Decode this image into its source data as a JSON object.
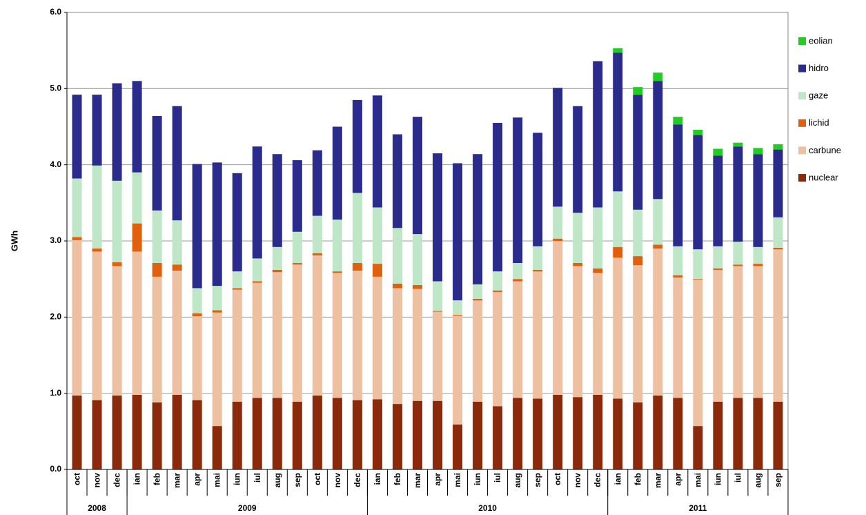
{
  "chart_data": {
    "type": "stacked-bar",
    "y_label": "GWh",
    "categories": [
      "oct",
      "nov",
      "dec",
      "ian",
      "feb",
      "mar",
      "apr",
      "mai",
      "iun",
      "iul",
      "aug",
      "sep",
      "oct",
      "nov",
      "dec",
      "ian",
      "feb",
      "mar",
      "apr",
      "mai",
      "iun",
      "iul",
      "aug",
      "sep",
      "oct",
      "nov",
      "dec",
      "ian",
      "feb",
      "mar",
      "apr",
      "mai",
      "iun",
      "iul",
      "aug",
      "sep"
    ],
    "groups": [
      {
        "label": "2008",
        "count": 3
      },
      {
        "label": "2009",
        "count": 12
      },
      {
        "label": "2010",
        "count": 12
      },
      {
        "label": "2011",
        "count": 9
      }
    ],
    "ylim": [
      0,
      6
    ],
    "yticks": [
      {
        "value": 0,
        "label": "0.0"
      },
      {
        "value": 1,
        "label": "1.0"
      },
      {
        "value": 2,
        "label": "2.0"
      },
      {
        "value": 3,
        "label": "3.0"
      },
      {
        "value": 4,
        "label": "4.0"
      },
      {
        "value": 5,
        "label": "5.0"
      },
      {
        "value": 6,
        "label": "6.0"
      }
    ],
    "grid": true,
    "legend": "right",
    "series": [
      {
        "name": "nuclear",
        "color": "#8a2a0a",
        "values": [
          0.97,
          0.91,
          0.97,
          0.98,
          0.88,
          0.98,
          0.91,
          0.57,
          0.89,
          0.94,
          0.94,
          0.89,
          0.97,
          0.94,
          0.91,
          0.92,
          0.86,
          0.9,
          0.9,
          0.59,
          0.89,
          0.83,
          0.94,
          0.93,
          0.98,
          0.95,
          0.98,
          0.93,
          0.88,
          0.97,
          0.94,
          0.57,
          0.89,
          0.94,
          0.94,
          0.89
        ]
      },
      {
        "name": "carbune",
        "color": "#ecc0a0",
        "values": [
          2.04,
          1.95,
          1.7,
          1.88,
          1.65,
          1.63,
          1.1,
          1.49,
          1.47,
          1.51,
          1.65,
          1.8,
          1.84,
          1.64,
          1.7,
          1.61,
          1.52,
          1.47,
          1.17,
          1.43,
          1.33,
          1.5,
          1.53,
          1.67,
          2.02,
          1.72,
          1.6,
          1.85,
          1.8,
          1.93,
          1.58,
          1.92,
          1.73,
          1.73,
          1.73,
          2.0
        ]
      },
      {
        "name": "lichid",
        "color": "#e0600e",
        "values": [
          0.04,
          0.04,
          0.05,
          0.37,
          0.18,
          0.08,
          0.04,
          0.03,
          0.02,
          0.02,
          0.03,
          0.02,
          0.03,
          0.02,
          0.1,
          0.17,
          0.06,
          0.05,
          0.01,
          0.01,
          0.02,
          0.02,
          0.03,
          0.02,
          0.03,
          0.04,
          0.06,
          0.14,
          0.12,
          0.05,
          0.03,
          0.01,
          0.02,
          0.02,
          0.03,
          0.02
        ]
      },
      {
        "name": "gaze",
        "color": "#bfe6c6",
        "values": [
          0.77,
          1.09,
          1.07,
          0.67,
          0.69,
          0.58,
          0.33,
          0.32,
          0.22,
          0.3,
          0.3,
          0.41,
          0.49,
          0.68,
          0.92,
          0.74,
          0.73,
          0.67,
          0.39,
          0.19,
          0.19,
          0.25,
          0.21,
          0.31,
          0.42,
          0.66,
          0.8,
          0.73,
          0.61,
          0.6,
          0.38,
          0.39,
          0.29,
          0.3,
          0.22,
          0.4
        ]
      },
      {
        "name": "hidro",
        "color": "#2b2b8c",
        "values": [
          1.1,
          0.93,
          1.28,
          1.2,
          1.24,
          1.5,
          1.63,
          1.62,
          1.29,
          1.47,
          1.22,
          0.94,
          0.86,
          1.22,
          1.22,
          1.47,
          1.23,
          1.54,
          1.68,
          1.8,
          1.71,
          1.95,
          1.91,
          1.49,
          1.56,
          1.4,
          1.92,
          1.82,
          1.51,
          1.55,
          1.6,
          1.5,
          1.19,
          1.25,
          1.22,
          0.89
        ]
      },
      {
        "name": "eolian",
        "color": "#22cc22",
        "values": [
          0,
          0,
          0,
          0,
          0,
          0,
          0,
          0,
          0,
          0,
          0,
          0,
          0,
          0,
          0,
          0,
          0,
          0,
          0,
          0,
          0,
          0,
          0,
          0,
          0,
          0,
          0,
          0.06,
          0.1,
          0.11,
          0.1,
          0.07,
          0.09,
          0.05,
          0.08,
          0.07
        ]
      }
    ]
  }
}
